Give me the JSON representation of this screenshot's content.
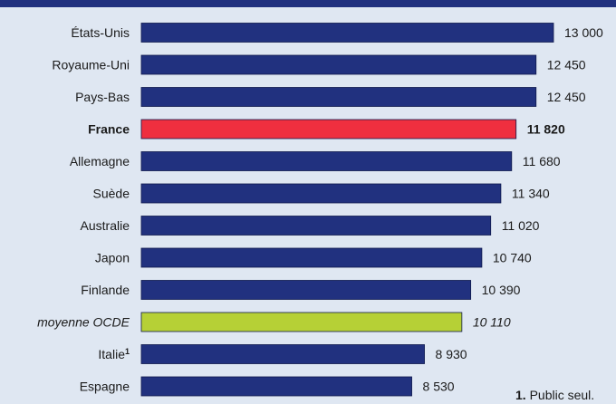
{
  "chart_data": {
    "type": "bar",
    "orientation": "horizontal",
    "title": "",
    "xlabel": "",
    "ylabel": "",
    "xlim": [
      0,
      13000
    ],
    "grid": false,
    "legend": "none",
    "categories": [
      "États-Unis",
      "Royaume-Uni",
      "Pays-Bas",
      "France",
      "Allemagne",
      "Suède",
      "Australie",
      "Japon",
      "Finlande",
      "moyenne OCDE",
      "Italie",
      "Espagne"
    ],
    "values": [
      13000,
      12450,
      12450,
      11820,
      11680,
      11340,
      11020,
      10740,
      10390,
      10110,
      8930,
      8530
    ],
    "value_labels": [
      "13 000",
      "12 450",
      "12 450",
      "11 820",
      "11 680",
      "11 340",
      "11 020",
      "10 740",
      "10 390",
      "10 110",
      "8 930",
      "8 530"
    ],
    "footnote_markers": [
      "",
      "",
      "",
      "",
      "",
      "",
      "",
      "",
      "",
      "",
      "1",
      ""
    ],
    "highlight": {
      "index": 3,
      "style": "bold"
    },
    "average": {
      "index": 9,
      "style": "italic"
    },
    "colors": {
      "default": "#21317f",
      "highlight": "#ef2f3f",
      "average": "#b6d036",
      "top_rule": "#21317f",
      "background": "#dfe7f2"
    }
  },
  "footnote": {
    "marker": "1.",
    "text": "Public seul."
  }
}
